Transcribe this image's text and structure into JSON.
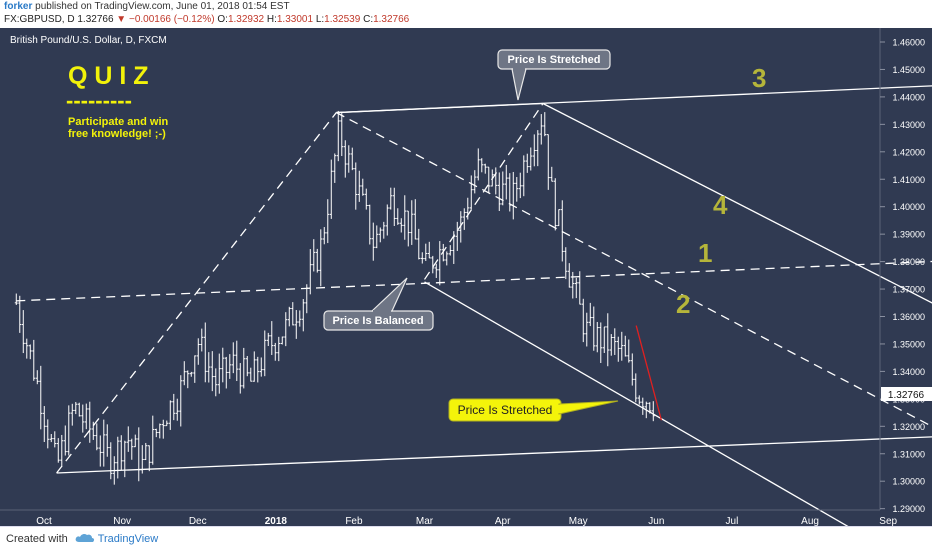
{
  "header": {
    "author": "forker",
    "published": " published on TradingView.com, June 01, 2018 01:54 EST",
    "symbol": "FX:GBPUSD, D",
    "last": "1.32766",
    "change": "▼ −0.00166 (−0.12%)",
    "open_label": "O:",
    "open": "1.32932",
    "high_label": "H:",
    "high": "1.33001",
    "low_label": "L:",
    "low": "1.32539",
    "close_label": "C:",
    "close": "1.32766"
  },
  "footer": {
    "created_with": "Created with",
    "brand": "TradingView",
    "logo_icon": "tradingview-cloud-icon"
  },
  "colors": {
    "background": "#303a52",
    "line": "#ffffff",
    "quiz_yellow": "#f2f20a",
    "number_olive": "#b5b53a",
    "callout_gray": "#6e7585",
    "callout_yellow": "#f4f40a",
    "price_tag": "#ffffff",
    "red_segment": "#e02020"
  },
  "chart_data": {
    "type": "ohlc",
    "symbol_title": "British Pound/U.S. Dollar, D, FXCM",
    "x_tick_labels": [
      "Oct",
      "Nov",
      "Dec",
      "2018",
      "Feb",
      "Mar",
      "Apr",
      "May",
      "Jun",
      "Jul",
      "Aug",
      "Sep"
    ],
    "y_tick_labels": [
      "1.46000",
      "1.45000",
      "1.44000",
      "1.43000",
      "1.42000",
      "1.41000",
      "1.40000",
      "1.39000",
      "1.38000",
      "1.37000",
      "1.36000",
      "1.35000",
      "1.34000",
      "1.33000",
      "1.32000",
      "1.31000",
      "1.30000",
      "1.29000"
    ],
    "current_price": "1.32766",
    "ylim": [
      1.283,
      1.466
    ],
    "price_path": [
      [
        "2017-09-20",
        1.365
      ],
      [
        "2017-09-28",
        1.337
      ],
      [
        "2017-10-06",
        1.305
      ],
      [
        "2017-10-13",
        1.327
      ],
      [
        "2017-10-20",
        1.318
      ],
      [
        "2017-10-27",
        1.308
      ],
      [
        "2017-11-03",
        1.316
      ],
      [
        "2017-11-09",
        1.306
      ],
      [
        "2017-11-17",
        1.323
      ],
      [
        "2017-11-24",
        1.333
      ],
      [
        "2017-12-01",
        1.351
      ],
      [
        "2017-12-08",
        1.336
      ],
      [
        "2017-12-15",
        1.343
      ],
      [
        "2017-12-22",
        1.336
      ],
      [
        "2017-12-29",
        1.349
      ],
      [
        "2018-01-05",
        1.356
      ],
      [
        "2018-01-12",
        1.367
      ],
      [
        "2018-01-19",
        1.386
      ],
      [
        "2018-01-26",
        1.427
      ],
      [
        "2018-02-02",
        1.408
      ],
      [
        "2018-02-09",
        1.386
      ],
      [
        "2018-02-16",
        1.403
      ],
      [
        "2018-02-23",
        1.394
      ],
      [
        "2018-03-01",
        1.377
      ],
      [
        "2018-03-08",
        1.385
      ],
      [
        "2018-03-15",
        1.393
      ],
      [
        "2018-03-22",
        1.414
      ],
      [
        "2018-03-29",
        1.408
      ],
      [
        "2018-04-05",
        1.403
      ],
      [
        "2018-04-12",
        1.423
      ],
      [
        "2018-04-17",
        1.434
      ],
      [
        "2018-04-20",
        1.407
      ],
      [
        "2018-04-27",
        1.377
      ],
      [
        "2018-05-04",
        1.355
      ],
      [
        "2018-05-11",
        1.351
      ],
      [
        "2018-05-18",
        1.347
      ],
      [
        "2018-05-25",
        1.332
      ],
      [
        "2018-06-01",
        1.328
      ]
    ],
    "annotations": {
      "quiz_title": "Q U I Z",
      "quiz_underline": "---------",
      "quiz_text_1": "Participate and win",
      "quiz_text_2": "free knowledge! ;-)",
      "callout_top": "Price Is Stretched",
      "callout_mid": "Price Is Balanced",
      "callout_bottom": "Price Is Stretched",
      "number_1": "1",
      "number_2": "2",
      "number_3": "3",
      "number_4": "4"
    },
    "legend": "none",
    "grid": false
  }
}
